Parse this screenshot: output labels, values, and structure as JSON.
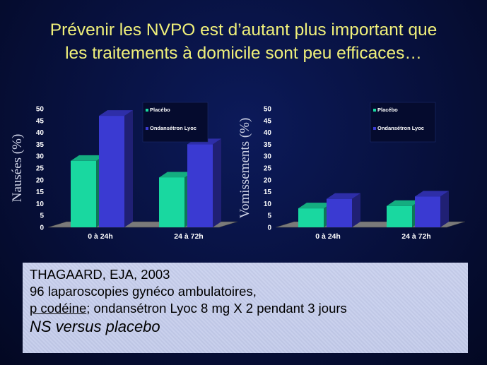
{
  "title": {
    "line1": "Prévenir les NVPO est d’autant plus important que",
    "line2": "les traitements à domicile sont peu efficaces…"
  },
  "chart_data": [
    {
      "type": "bar",
      "ylabel": "Nausées (%)",
      "categories": [
        "0 à 24h",
        "24 à 72h"
      ],
      "series": [
        {
          "name": "Placébo",
          "values": [
            28,
            21
          ],
          "color": "#19d8a0"
        },
        {
          "name": "Ondansétron Lyoc",
          "values": [
            47,
            35
          ],
          "color": "#3a3ad2"
        }
      ],
      "ylim": [
        0,
        50
      ],
      "yticks": [
        "0",
        "5",
        "10",
        "15",
        "20",
        "25",
        "30",
        "35",
        "40",
        "45",
        "50"
      ],
      "legend": "top-right"
    },
    {
      "type": "bar",
      "ylabel": "Vomissements (%)",
      "categories": [
        "0 à 24h",
        "24 à 72h"
      ],
      "series": [
        {
          "name": "Placébo",
          "values": [
            8,
            9
          ],
          "color": "#19d8a0"
        },
        {
          "name": "Ondansétron Lyoc",
          "values": [
            12,
            13
          ],
          "color": "#3a3ad2"
        }
      ],
      "ylim": [
        0,
        50
      ],
      "yticks": [
        "0",
        "5",
        "10",
        "15",
        "20",
        "25",
        "30",
        "35",
        "40",
        "45",
        "50"
      ],
      "legend": "top-right"
    }
  ],
  "citation": {
    "line1": "THAGAARD, EJA, 2003",
    "line2": "96 laparoscopies gynéco ambulatoires,",
    "line3_underlined": "p codéine",
    "line3_rest": "; ondansétron Lyoc 8 mg X 2 pendant 3 jours",
    "line4": "NS versus placebo"
  }
}
